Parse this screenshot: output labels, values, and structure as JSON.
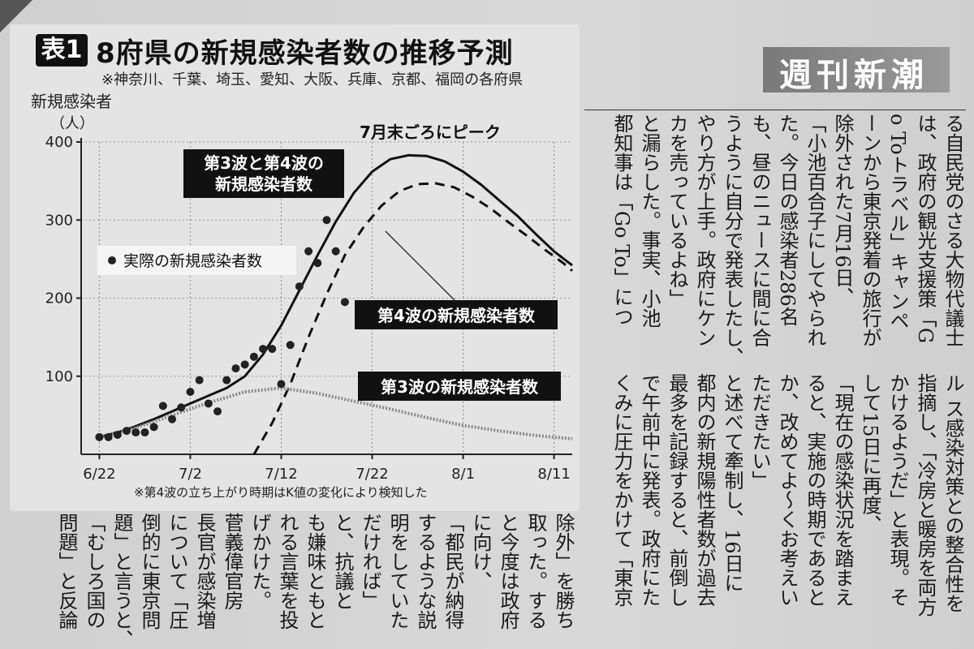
{
  "magazine": {
    "masthead": "週刊新潮"
  },
  "figure": {
    "badge": "表1",
    "title": "8府県の新規感染者数の推移予測",
    "note": "※神奈川、千葉、埼玉、愛知、大阪、兵庫、京都、福岡の各府県",
    "footnote": "※第4波の立ち上がり時期はK値の変化により検知した"
  },
  "chart_data": {
    "type": "line",
    "ylabel_line1": "新規感染者",
    "ylabel_line2": "（人）",
    "ylim": [
      0,
      400
    ],
    "yticks": [
      100,
      200,
      300,
      400
    ],
    "x_tick_labels": [
      "6/22",
      "7/2",
      "7/12",
      "7/22",
      "8/1",
      "8/11"
    ],
    "x_tick_days": [
      0,
      10,
      20,
      30,
      40,
      50
    ],
    "grid": true,
    "annotations": {
      "peak": "7月末ごろにピーク",
      "combined": [
        "第3波と第4波の",
        "新規感染者数"
      ],
      "actual": "実際の新規感染者数",
      "wave4": "第4波の新規感染者数",
      "wave3": "第3波の新規感染者数"
    },
    "series": [
      {
        "name": "第3波と第4波の新規感染者数",
        "style": "solid",
        "x": [
          0,
          2,
          4,
          6,
          8,
          10,
          12,
          14,
          16,
          18,
          20,
          22,
          24,
          26,
          28,
          30,
          32,
          34,
          36,
          38,
          40,
          42,
          44,
          46,
          48,
          50,
          52
        ],
        "y": [
          22,
          28,
          36,
          45,
          55,
          65,
          75,
          85,
          100,
          128,
          165,
          210,
          255,
          298,
          335,
          362,
          378,
          383,
          382,
          375,
          362,
          345,
          325,
          305,
          282,
          260,
          242
        ]
      },
      {
        "name": "第4波の新規感染者数",
        "style": "dashed",
        "x": [
          17,
          19,
          21,
          23,
          25,
          27,
          29,
          31,
          33,
          35,
          37,
          39,
          41,
          43,
          45,
          47,
          49,
          51,
          52
        ],
        "y": [
          0,
          40,
          90,
          150,
          205,
          255,
          290,
          318,
          337,
          346,
          347,
          342,
          330,
          315,
          297,
          280,
          262,
          245,
          235
        ]
      },
      {
        "name": "第3波の新規感染者数",
        "style": "dotted",
        "x": [
          0,
          4,
          8,
          12,
          16,
          20,
          24,
          28,
          32,
          36,
          40,
          44,
          48,
          52
        ],
        "y": [
          22,
          34,
          50,
          66,
          80,
          85,
          78,
          68,
          58,
          47,
          37,
          30,
          24,
          20
        ]
      }
    ],
    "actual_points": {
      "name": "実際の新規感染者数",
      "x": [
        0,
        1,
        2,
        3,
        4,
        5,
        6,
        7,
        8,
        9,
        10,
        11,
        12,
        13,
        14,
        15,
        16,
        17,
        18,
        19,
        20,
        21,
        22,
        23,
        24,
        25,
        26,
        27
      ],
      "y": [
        22,
        22,
        25,
        30,
        28,
        28,
        35,
        62,
        45,
        60,
        80,
        95,
        65,
        55,
        95,
        110,
        115,
        125,
        135,
        135,
        90,
        140,
        215,
        260,
        245,
        300,
        260,
        195
      ]
    }
  },
  "article": {
    "columns": [
      "る自民党のさる大物代議士",
      "は、政府の観光支援策「G",
      "o Toトラベル」キャンペ",
      "ーンから東京発着の旅行が",
      "除外された7月16日、",
      "「小池百合子にしてやられ",
      "た。今日の感染者286名",
      "も、昼のニュースに間に合",
      "うように自分で発表したし、",
      "やり方が上手。政府にケン",
      "カを売っているよね」",
      "と漏らした。事実、小池",
      "都知事は「Go To」につ"
    ],
    "lower_right_columns": [
      "ル ス感染対策との整合性を",
      "指摘し、「冷房と暖房を両方",
      "かけるようだ」と表現。そ",
      "して15日に再度、",
      "「現在の感染状況を踏まえ",
      "ると、実施の時期であると",
      "か、改めてよ〜くお考えい",
      "ただきたい」",
      "と述べて牽制し、16日に",
      "都内の新規陽性者数が過去",
      "最多を記録すると、前倒し",
      "で午前中に発表。政府にた",
      "くみに圧力をかけて「東京"
    ],
    "lower_left_columns": [
      "除外」を勝ち",
      "取った。する",
      "と今度は政府",
      "に向け、",
      "「都民が納得",
      "するような説",
      "明をしていた",
      "だければ」",
      "と、抗議と",
      "も嫌味ともと",
      "れる言葉を投",
      "げかけた。",
      "菅義偉官房",
      "長官が感染増",
      "について「圧",
      "倒的に東京問",
      "題」と言うと、",
      "「むしろ国の",
      "問題」と反論"
    ]
  }
}
